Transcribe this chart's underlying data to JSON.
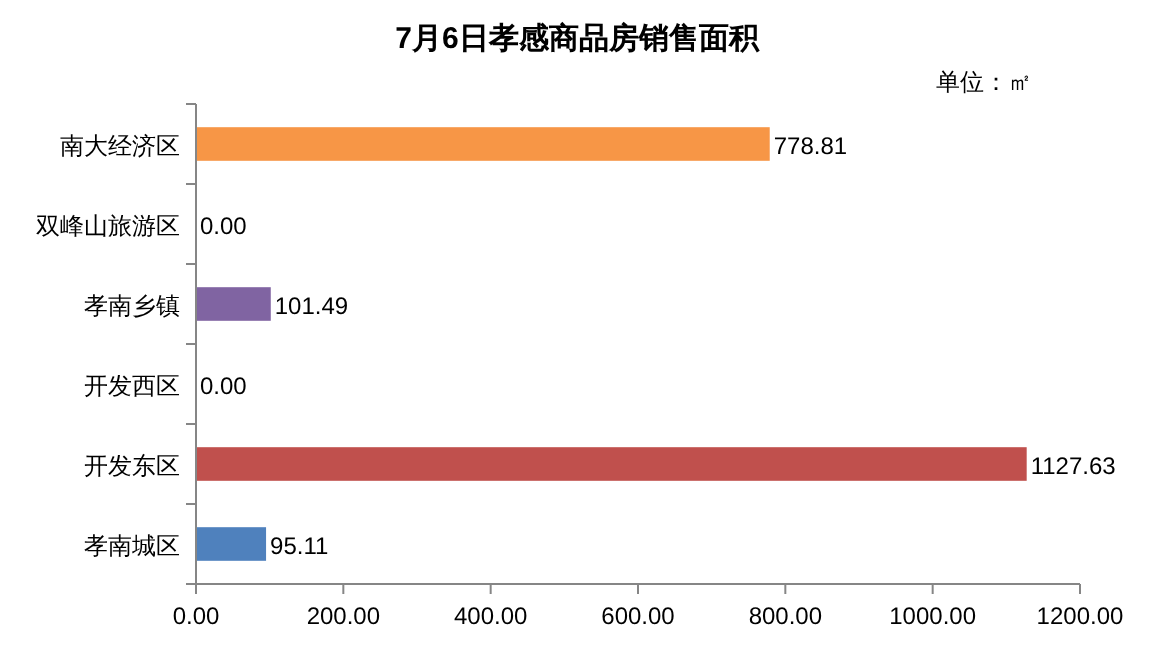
{
  "chart_data": {
    "type": "bar",
    "orientation": "horizontal",
    "title": "7月6日孝感商品房销售面积",
    "annotations": [
      "单位：㎡"
    ],
    "categories": [
      "南大经济区",
      "双峰山旅游区",
      "孝南乡镇",
      "开发西区",
      "开发东区",
      "孝南城区"
    ],
    "values": [
      778.81,
      0,
      101.49,
      0,
      1127.63,
      95.11
    ],
    "colors": [
      "#f79646",
      "#f79646",
      "#8064a2",
      "#8064a2",
      "#c0504d",
      "#4f81bd"
    ],
    "value_labels": [
      "778.81",
      "0.00",
      "101.49",
      "0.00",
      "1127.63",
      "95.11"
    ],
    "xlim": [
      0,
      1200
    ],
    "xticks": [
      {
        "value": 0,
        "label": "0.00"
      },
      {
        "value": 200,
        "label": "200.00"
      },
      {
        "value": 400,
        "label": "400.00"
      },
      {
        "value": 600,
        "label": "600.00"
      },
      {
        "value": 800,
        "label": "800.00"
      },
      {
        "value": 1000,
        "label": "1000.00"
      },
      {
        "value": 1200,
        "label": "1200.00"
      }
    ]
  }
}
